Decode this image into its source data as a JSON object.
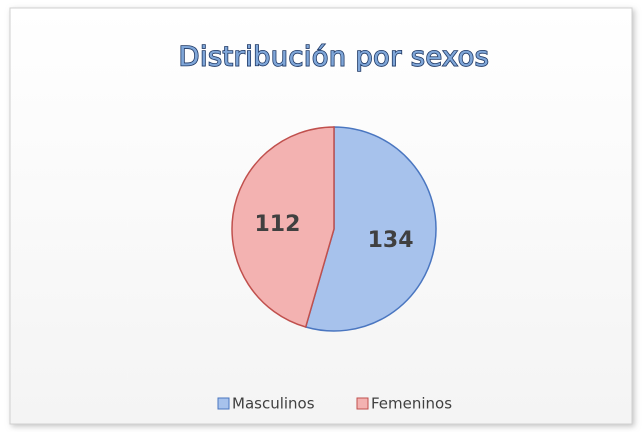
{
  "chart_data": {
    "type": "pie",
    "title": "Distribución por sexos",
    "categories": [
      "Masculinos",
      "Femeninos"
    ],
    "values": [
      134,
      112
    ],
    "colors": [
      "#a7c2ec",
      "#f3b2b1"
    ],
    "edge_colors": [
      "#4a76c0",
      "#c0504d"
    ],
    "legend": "bottom"
  }
}
